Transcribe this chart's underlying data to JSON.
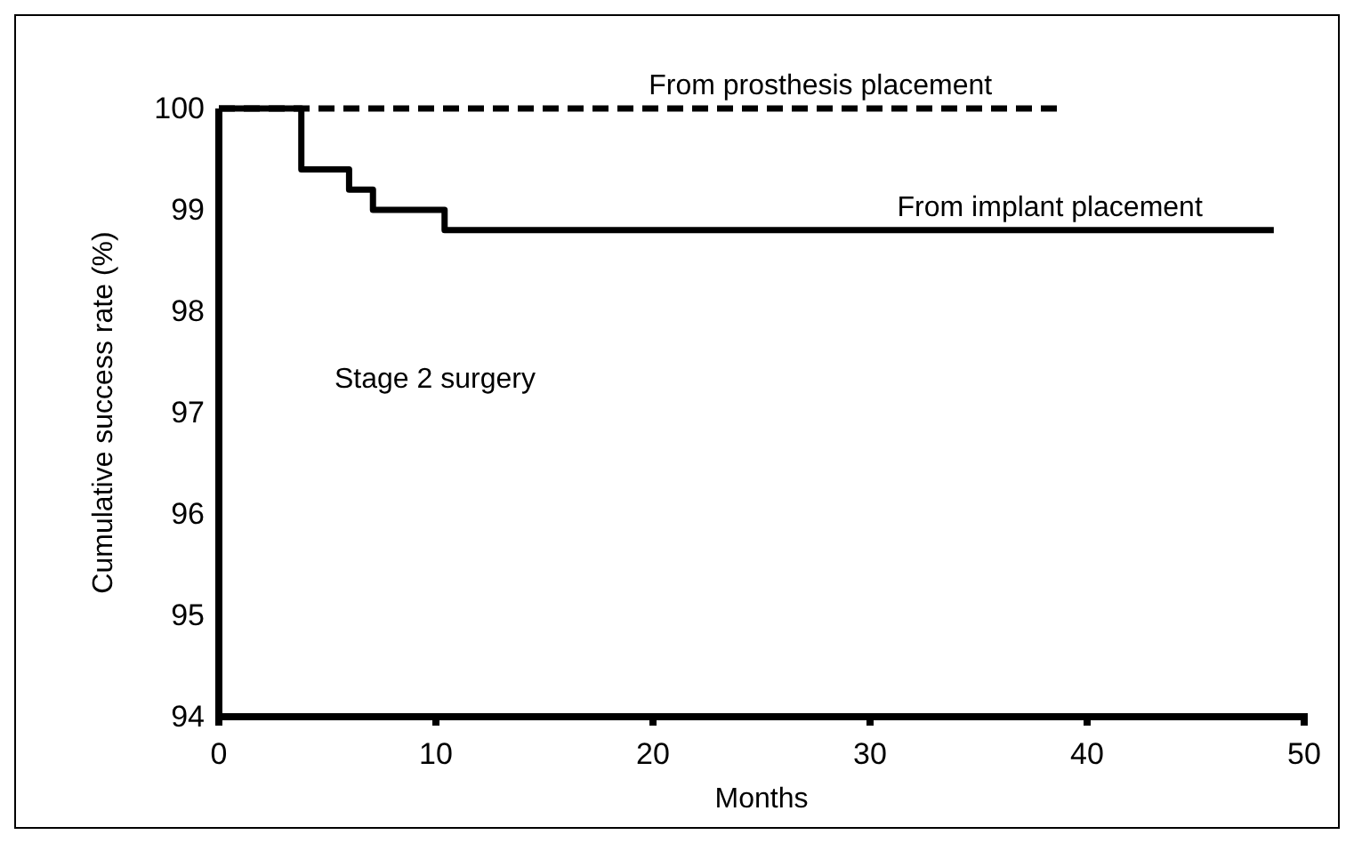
{
  "chart_data": {
    "type": "step",
    "xlabel": "Months",
    "ylabel": "Cumulative success rate (%)",
    "xlim": [
      0,
      50
    ],
    "ylim": [
      94,
      100
    ],
    "xticks": [
      0,
      10,
      20,
      30,
      40,
      50
    ],
    "yticks": [
      94,
      95,
      96,
      97,
      98,
      99,
      100
    ],
    "grid": false,
    "legend": false,
    "marker": "none",
    "annotations": [
      "Stage 2 surgery"
    ],
    "series": [
      {
        "name": "From prosthesis placement",
        "color": "#000000",
        "line_style": "dashed",
        "x": [
          0,
          38.9
        ],
        "values": [
          100,
          100
        ]
      },
      {
        "name": "From implant placement",
        "color": "#000000",
        "line_style": "solid",
        "x": [
          0,
          3.8,
          6.0,
          7.1,
          10.4,
          48.6
        ],
        "values": [
          100,
          99.4,
          99.2,
          99.0,
          98.8,
          98.8
        ]
      }
    ]
  }
}
